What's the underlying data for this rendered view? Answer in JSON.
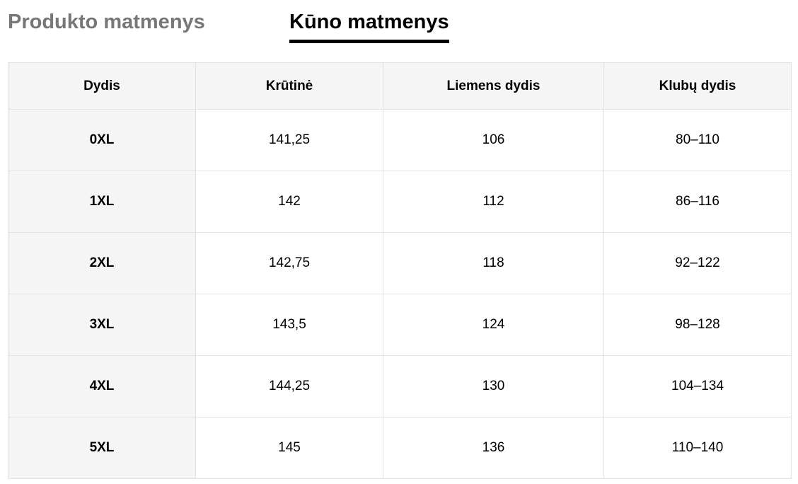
{
  "tabs": [
    {
      "label": "Produkto matmenys",
      "active": false
    },
    {
      "label": "Kūno matmenys",
      "active": true
    }
  ],
  "table": {
    "headers": [
      "Dydis",
      "Krūtinė",
      "Liemens dydis",
      "Klubų dydis"
    ],
    "rows": [
      [
        "0XL",
        "141,25",
        "106",
        "80–110"
      ],
      [
        "1XL",
        "142",
        "112",
        "86–116"
      ],
      [
        "2XL",
        "142,75",
        "118",
        "92–122"
      ],
      [
        "3XL",
        "143,5",
        "124",
        "98–128"
      ],
      [
        "4XL",
        "144,25",
        "130",
        "104–134"
      ],
      [
        "5XL",
        "145",
        "136",
        "110–140"
      ]
    ]
  }
}
